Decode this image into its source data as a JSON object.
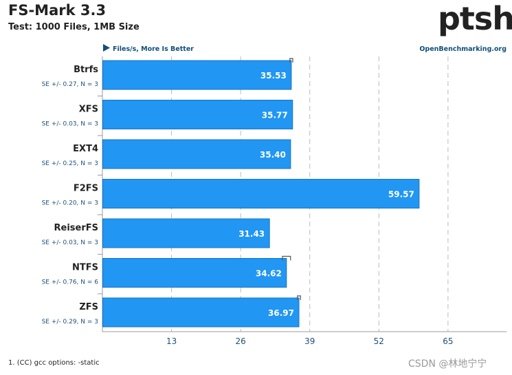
{
  "header": {
    "title": "FS-Mark 3.3",
    "subtitle": "Test: 1000 Files, 1MB Size",
    "logo_text": "ptsh"
  },
  "footer": {
    "note": "1. (CC) gcc options: -static",
    "watermark": "CSDN @林地宁宁"
  },
  "colors": {
    "bar": "#2196f3",
    "bar_border": "#1b74c2",
    "axis": "#999999",
    "grid": "#bbbbbb",
    "link": "#114f7a",
    "text": "#222222",
    "se_text": "#1e4e79"
  },
  "chart_data": {
    "type": "bar",
    "orientation": "horizontal",
    "direction_label": "Files/s, More Is Better",
    "source_label": "OpenBenchmarking.org",
    "categories": [
      "Btrfs",
      "XFS",
      "EXT4",
      "F2FS",
      "ReiserFS",
      "NTFS",
      "ZFS"
    ],
    "values": [
      35.53,
      35.77,
      35.4,
      59.57,
      31.43,
      34.62,
      36.97
    ],
    "value_labels": [
      "35.53",
      "35.77",
      "35.40",
      "59.57",
      "31.43",
      "34.62",
      "36.97"
    ],
    "se_labels": [
      "SE +/- 0.27, N = 3",
      "SE +/- 0.03, N = 3",
      "SE +/- 0.25, N = 3",
      "SE +/- 0.20, N = 3",
      "SE +/- 0.03, N = 3",
      "SE +/- 0.76, N = 6",
      "SE +/- 0.29, N = 3"
    ],
    "se_values": [
      0.27,
      0.03,
      0.25,
      0.2,
      0.03,
      0.76,
      0.29
    ],
    "xticks": [
      13,
      26,
      39,
      52,
      65
    ],
    "xlim": [
      0,
      76
    ],
    "grid": true
  }
}
